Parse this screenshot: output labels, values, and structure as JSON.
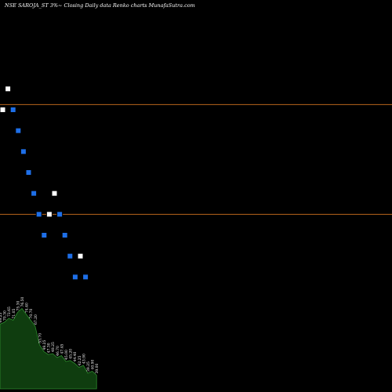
{
  "chart_data": {
    "type": "renko",
    "title": "NSE SAROJA_ST 3%~  Closing Daily data  Renko  charts MunafaSutra.com",
    "brick_size_pct": 3,
    "price_range": [
      54,
      81
    ],
    "reference_lines": [
      72.5,
      62.0
    ],
    "bricks": [
      {
        "dir": "up",
        "value": 72.0
      },
      {
        "dir": "up",
        "value": 74.0
      },
      {
        "dir": "down",
        "value": 72.0
      },
      {
        "dir": "down",
        "value": 70.0
      },
      {
        "dir": "down",
        "value": 68.0
      },
      {
        "dir": "down",
        "value": 66.0
      },
      {
        "dir": "down",
        "value": 64.0
      },
      {
        "dir": "down",
        "value": 62.0
      },
      {
        "dir": "down",
        "value": 60.0
      },
      {
        "dir": "up",
        "value": 62.0
      },
      {
        "dir": "up",
        "value": 64.0
      },
      {
        "dir": "down",
        "value": 62.0
      },
      {
        "dir": "down",
        "value": 60.0
      },
      {
        "dir": "down",
        "value": 58.0
      },
      {
        "dir": "down",
        "value": 56.0
      },
      {
        "dir": "up",
        "value": 58.0
      },
      {
        "dir": "down",
        "value": 56.0
      }
    ],
    "volume_labels": [
      "69.25",
      "70.30",
      "72.65",
      "71.05",
      "75.30",
      "76.50",
      "74.40",
      "70.70",
      "67.20",
      "53.70",
      "49.25",
      "47.30",
      "48.25",
      "46.70",
      "47.45",
      "45.00",
      "45.20",
      "44.40",
      "42.25",
      "43.90",
      "39.25",
      "40.90",
      "39.00"
    ],
    "volume_values": [
      66,
      68,
      72,
      70,
      78,
      82,
      76,
      70,
      64,
      45,
      38,
      35,
      36,
      32,
      34,
      28,
      29,
      26,
      22,
      24,
      16,
      18,
      14
    ],
    "colors": {
      "background": "#000000",
      "up_brick": "#ffffff",
      "down_brick": "#1e6fe8",
      "reference_line": "#b8651b",
      "volume_fill": "#0f3d0f",
      "volume_stroke": "#2e8b2e",
      "text": "#ffffff"
    }
  }
}
